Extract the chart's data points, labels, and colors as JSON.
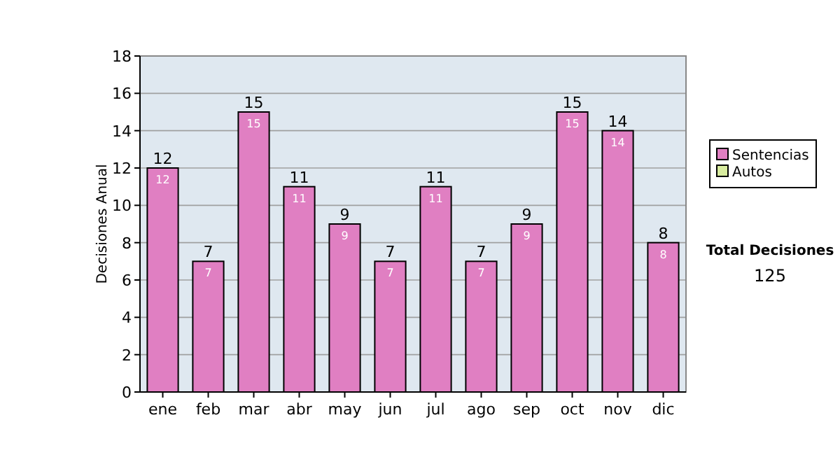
{
  "chart_data": {
    "type": "bar",
    "stacked": true,
    "ylabel": "Decisiones Anual",
    "categories": [
      "ene",
      "feb",
      "mar",
      "abr",
      "may",
      "jun",
      "jul",
      "ago",
      "sep",
      "oct",
      "nov",
      "dic"
    ],
    "series": [
      {
        "name": "Sentencias",
        "color": "#e07fc2",
        "values": [
          12,
          7,
          15,
          11,
          9,
          7,
          11,
          7,
          9,
          15,
          14,
          8
        ],
        "value_labels": [
          "12",
          "7",
          "15",
          "11",
          "9",
          "7",
          "11",
          "7",
          "9",
          "15",
          "14",
          "8"
        ]
      },
      {
        "name": "Autos",
        "color": "#d8ec9f",
        "values": [
          0,
          0,
          0,
          0,
          0,
          0,
          0,
          0,
          0,
          0,
          0,
          0
        ]
      }
    ],
    "totals": [
      "12",
      "7",
      "15",
      "11",
      "9",
      "7",
      "11",
      "7",
      "9",
      "15",
      "14",
      "8"
    ],
    "ylim": [
      0,
      18
    ],
    "yticks": [
      0,
      2,
      4,
      6,
      8,
      10,
      12,
      14,
      16,
      18
    ],
    "grid": "y",
    "legend": "right",
    "annotations": [
      "Total Decisiones",
      "125"
    ]
  }
}
